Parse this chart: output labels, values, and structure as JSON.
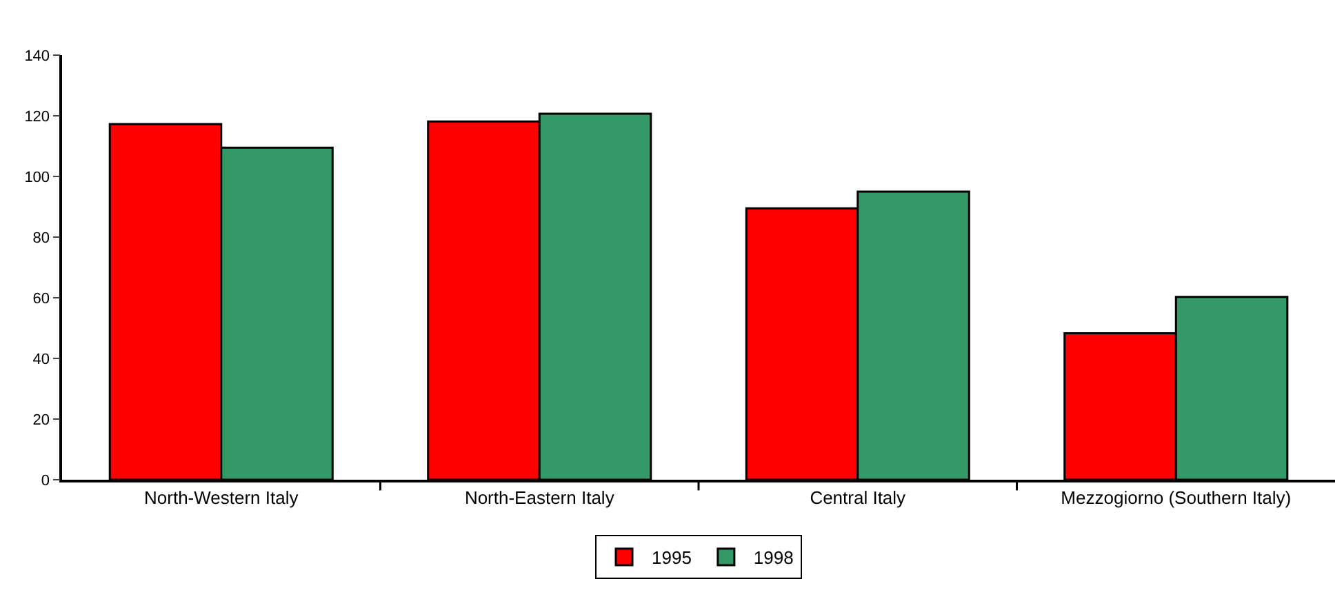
{
  "chart_data": {
    "type": "bar",
    "categories": [
      "North-Western Italy",
      "North-Eastern Italy",
      "Central Italy",
      "Mezzogiorno (Southern Italy)"
    ],
    "series": [
      {
        "name": "1995",
        "color": "#ff0000",
        "values": [
          117.3,
          118.1,
          89.5,
          48.3
        ]
      },
      {
        "name": "1998",
        "color": "#339966",
        "values": [
          109.5,
          120.7,
          95.0,
          60.3
        ]
      }
    ],
    "ylim": [
      0,
      140
    ],
    "yticks": [
      0,
      20,
      40,
      60,
      80,
      100,
      120,
      140
    ],
    "grid": false,
    "legend": "bottom"
  }
}
